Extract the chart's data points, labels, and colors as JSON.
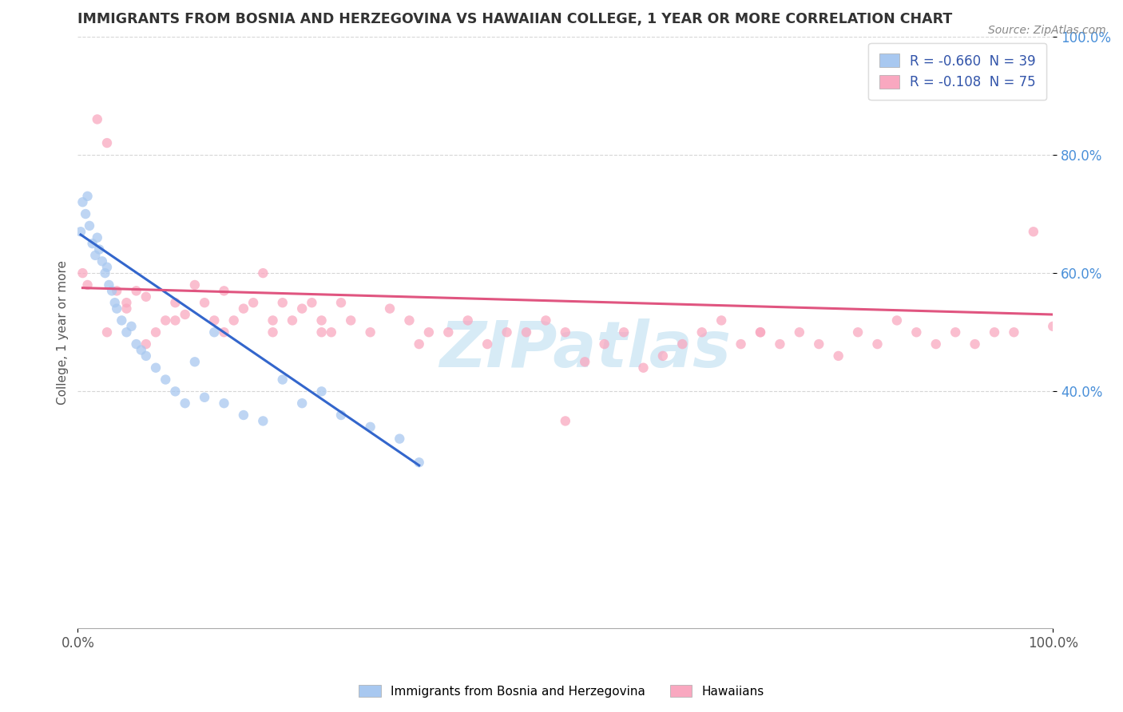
{
  "title": "IMMIGRANTS FROM BOSNIA AND HERZEGOVINA VS HAWAIIAN COLLEGE, 1 YEAR OR MORE CORRELATION CHART",
  "source_text": "Source: ZipAtlas.com",
  "ylabel": "College, 1 year or more",
  "xlim": [
    0,
    100
  ],
  "ylim": [
    0,
    100
  ],
  "legend_label1": "Immigrants from Bosnia and Herzegovina",
  "legend_label2": "Hawaiians",
  "series1_color": "#a8c8f0",
  "series2_color": "#f9a8c0",
  "trend1_color": "#3366cc",
  "trend2_color": "#e05580",
  "R1": -0.66,
  "N1": 39,
  "R2": -0.108,
  "N2": 75,
  "background_color": "#ffffff",
  "grid_color": "#cccccc",
  "series1_x": [
    0.3,
    0.5,
    0.8,
    1.0,
    1.2,
    1.5,
    1.8,
    2.0,
    2.2,
    2.5,
    2.8,
    3.0,
    3.2,
    3.5,
    3.8,
    4.0,
    4.5,
    5.0,
    5.5,
    6.0,
    6.5,
    7.0,
    8.0,
    9.0,
    10.0,
    11.0,
    12.0,
    13.0,
    14.0,
    15.0,
    17.0,
    19.0,
    21.0,
    23.0,
    25.0,
    27.0,
    30.0,
    33.0,
    35.0
  ],
  "series1_y": [
    67,
    72,
    70,
    73,
    68,
    65,
    63,
    66,
    64,
    62,
    60,
    61,
    58,
    57,
    55,
    54,
    52,
    50,
    51,
    48,
    47,
    46,
    44,
    42,
    40,
    38,
    45,
    39,
    50,
    38,
    36,
    35,
    42,
    38,
    40,
    36,
    34,
    32,
    28
  ],
  "series2_x": [
    0.5,
    1.0,
    2.0,
    3.0,
    4.0,
    5.0,
    6.0,
    7.0,
    8.0,
    9.0,
    10.0,
    11.0,
    12.0,
    13.0,
    14.0,
    15.0,
    16.0,
    17.0,
    18.0,
    19.0,
    20.0,
    21.0,
    22.0,
    23.0,
    24.0,
    25.0,
    26.0,
    27.0,
    28.0,
    30.0,
    32.0,
    34.0,
    36.0,
    38.0,
    40.0,
    42.0,
    44.0,
    46.0,
    48.0,
    50.0,
    52.0,
    54.0,
    56.0,
    58.0,
    60.0,
    62.0,
    64.0,
    66.0,
    68.0,
    70.0,
    72.0,
    74.0,
    76.0,
    78.0,
    80.0,
    82.0,
    84.0,
    86.0,
    88.0,
    90.0,
    92.0,
    94.0,
    96.0,
    98.0,
    100.0,
    3.0,
    5.0,
    7.0,
    10.0,
    15.0,
    20.0,
    25.0,
    35.0,
    50.0,
    70.0
  ],
  "series2_y": [
    60,
    58,
    86,
    82,
    57,
    54,
    57,
    56,
    50,
    52,
    55,
    53,
    58,
    55,
    52,
    57,
    52,
    54,
    55,
    60,
    50,
    55,
    52,
    54,
    55,
    52,
    50,
    55,
    52,
    50,
    54,
    52,
    50,
    50,
    52,
    48,
    50,
    50,
    52,
    50,
    45,
    48,
    50,
    44,
    46,
    48,
    50,
    52,
    48,
    50,
    48,
    50,
    48,
    46,
    50,
    48,
    52,
    50,
    48,
    50,
    48,
    50,
    50,
    67,
    51,
    50,
    55,
    48,
    52,
    50,
    52,
    50,
    48,
    35,
    50
  ],
  "trend1_x_start": 0.3,
  "trend1_x_end": 35.0,
  "trend1_y_start": 66.5,
  "trend1_y_end": 27.5,
  "trend2_x_start": 0.5,
  "trend2_x_end": 100.0,
  "trend2_y_start": 57.5,
  "trend2_y_end": 53.0
}
